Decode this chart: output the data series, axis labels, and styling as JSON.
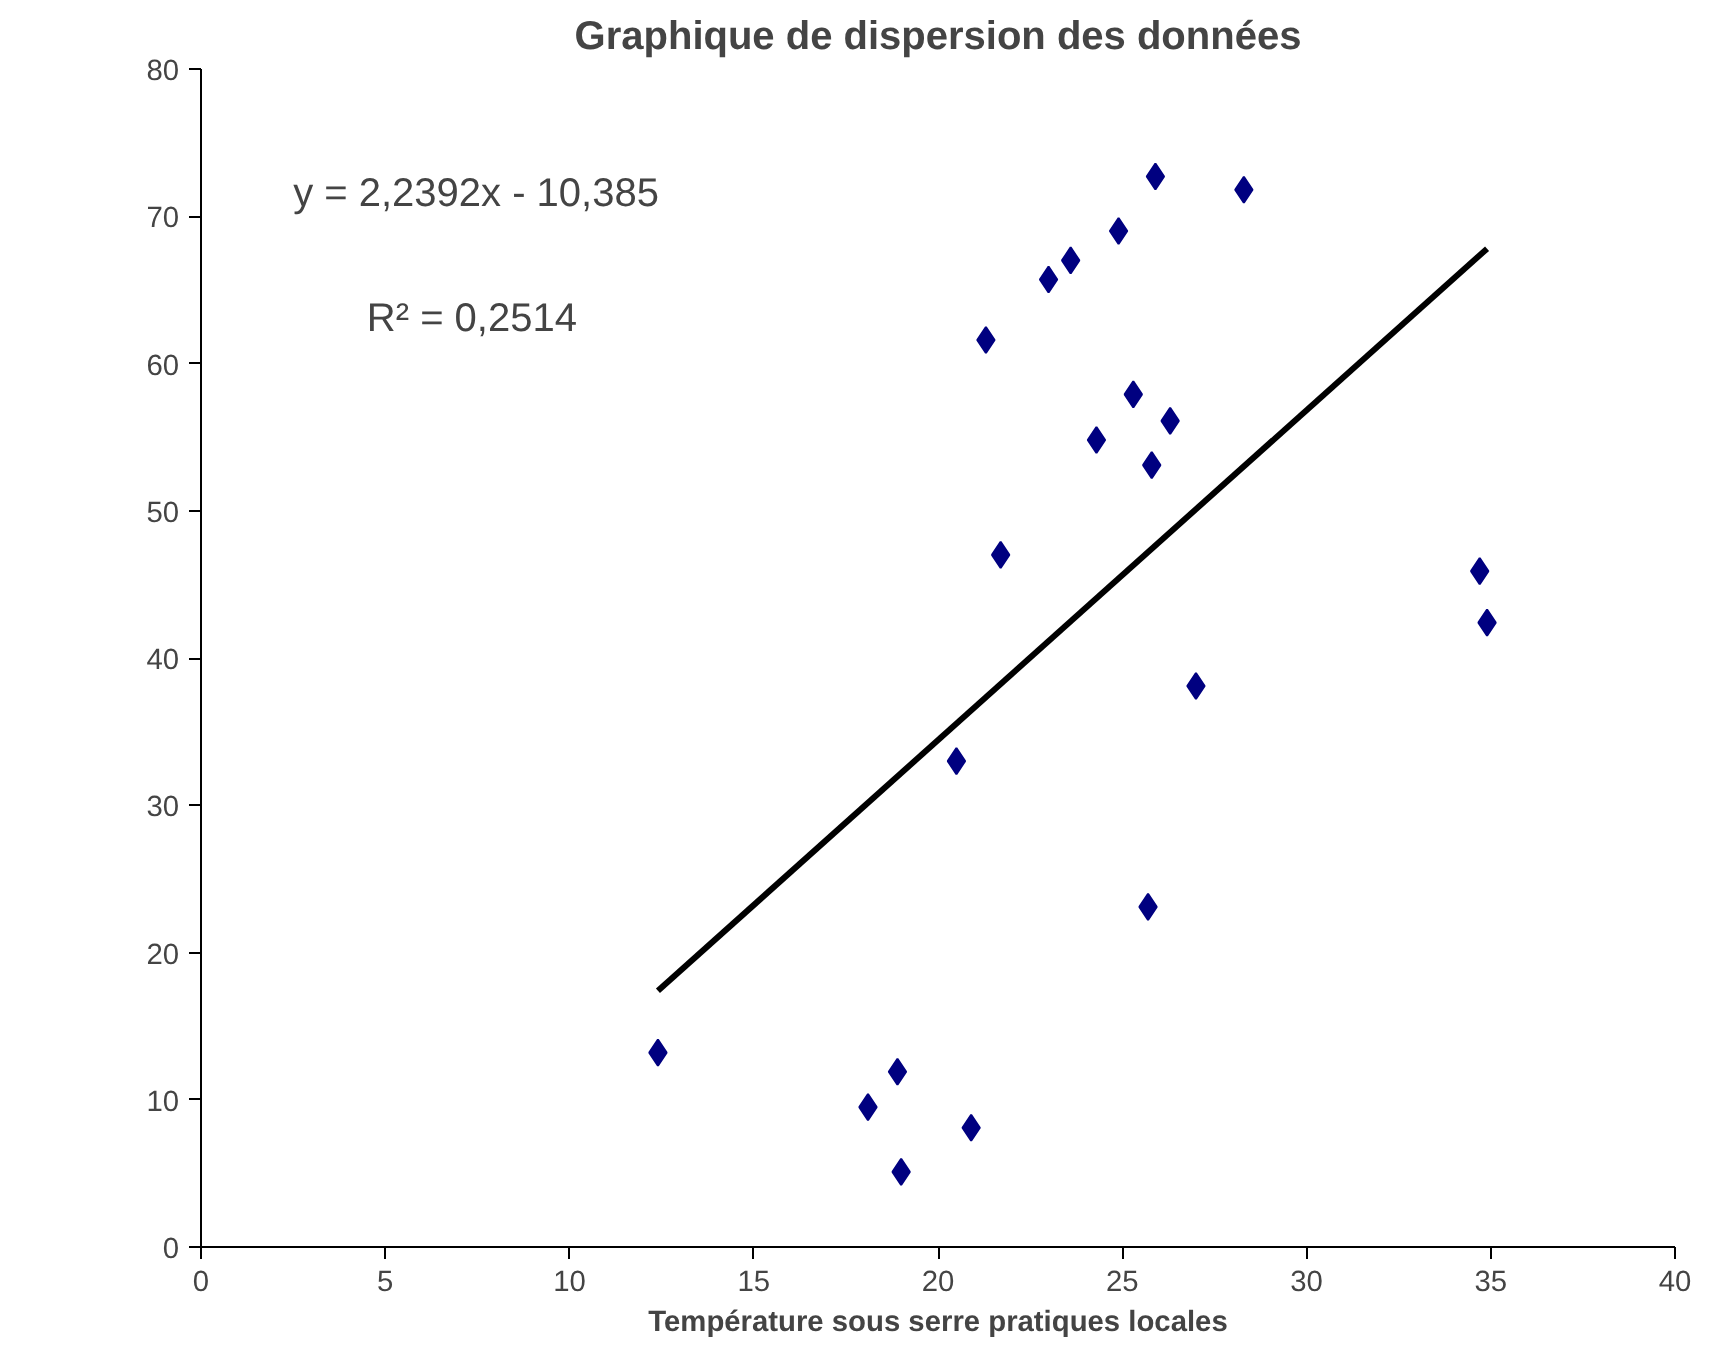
{
  "chart_data": {
    "type": "scatter",
    "title": "Graphique de dispersion des données",
    "xlabel": "Température sous serre pratiques locales",
    "xlim": [
      0,
      40
    ],
    "xticks": [
      0,
      5,
      10,
      15,
      20,
      25,
      30,
      35,
      40
    ],
    "ylim": [
      0,
      80
    ],
    "yticks": [
      0,
      10,
      20,
      30,
      40,
      50,
      60,
      70,
      80
    ],
    "grid": false,
    "marker": "diamond",
    "series": [
      {
        "color": "#000080",
        "x": [
          12.4,
          18.1,
          18.9,
          19.0,
          20.9,
          20.5,
          21.3,
          21.7,
          23.0,
          23.6,
          24.3,
          24.9,
          25.3,
          25.8,
          25.9,
          26.3,
          25.7,
          27.0,
          28.3,
          34.7,
          34.9
        ],
        "values": [
          13.2,
          9.5,
          11.9,
          5.1,
          8.1,
          33,
          61.6,
          47,
          65.7,
          67,
          54.8,
          69,
          57.9,
          53.1,
          72.7,
          56.1,
          23.1,
          38.1,
          71.8,
          45.9,
          42.4
        ]
      },
      {
        "type": "line",
        "color": "#000000",
        "marker": "none",
        "x": [
          12.4,
          34.9
        ],
        "values": [
          17.4,
          67.8
        ]
      }
    ],
    "annotations": [
      "y = 2,2392x - 10,385",
      "R² = 0,2514"
    ]
  }
}
